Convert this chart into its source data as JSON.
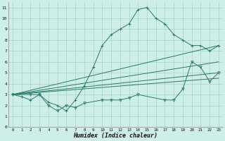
{
  "xlabel": "Humidex (Indice chaleur)",
  "bg_color": "#ceeee8",
  "grid_color": "#a8d4cc",
  "line_color": "#2a7a6a",
  "xlim": [
    -0.5,
    23.5
  ],
  "ylim": [
    0,
    11.5
  ],
  "xticks": [
    0,
    1,
    2,
    3,
    4,
    5,
    6,
    7,
    8,
    9,
    10,
    11,
    12,
    13,
    14,
    15,
    16,
    17,
    18,
    19,
    20,
    21,
    22,
    23
  ],
  "yticks": [
    0,
    1,
    2,
    3,
    4,
    5,
    6,
    7,
    8,
    9,
    10,
    11
  ],
  "series1_x": [
    0,
    1,
    2,
    3,
    4,
    5,
    6,
    7,
    8,
    9,
    10,
    11,
    12,
    13,
    14,
    15,
    16,
    17,
    18,
    19,
    20,
    21,
    22,
    23
  ],
  "series1_y": [
    3.0,
    2.8,
    2.5,
    3.0,
    2.3,
    2.0,
    1.5,
    2.5,
    3.8,
    5.5,
    7.5,
    8.5,
    9.0,
    9.5,
    10.8,
    11.0,
    10.0,
    9.5,
    8.5,
    8.0,
    7.5,
    7.5,
    7.0,
    7.5
  ],
  "series2_x": [
    0,
    2,
    3,
    4,
    5,
    6,
    7,
    8,
    10,
    11,
    12,
    13,
    14,
    17,
    18,
    19,
    20,
    21,
    22,
    23
  ],
  "series2_y": [
    3.0,
    3.0,
    3.0,
    2.0,
    1.5,
    2.0,
    1.8,
    2.2,
    2.5,
    2.5,
    2.5,
    2.7,
    3.0,
    2.5,
    2.5,
    3.5,
    6.0,
    5.5,
    4.2,
    5.0
  ],
  "series3_x": [
    0,
    23
  ],
  "series3_y": [
    3.0,
    6.0
  ],
  "series4_x": [
    0,
    23
  ],
  "series4_y": [
    3.0,
    5.0
  ],
  "series5_x": [
    0,
    23
  ],
  "series5_y": [
    3.0,
    4.5
  ],
  "fan_from_x": 0,
  "fan_from_y": 3.0,
  "fan_lines": [
    {
      "x": [
        0,
        23
      ],
      "y": [
        3.0,
        7.5
      ]
    },
    {
      "x": [
        0,
        23
      ],
      "y": [
        3.0,
        6.0
      ]
    },
    {
      "x": [
        0,
        23
      ],
      "y": [
        3.0,
        5.0
      ]
    },
    {
      "x": [
        0,
        23
      ],
      "y": [
        3.0,
        4.5
      ]
    }
  ]
}
